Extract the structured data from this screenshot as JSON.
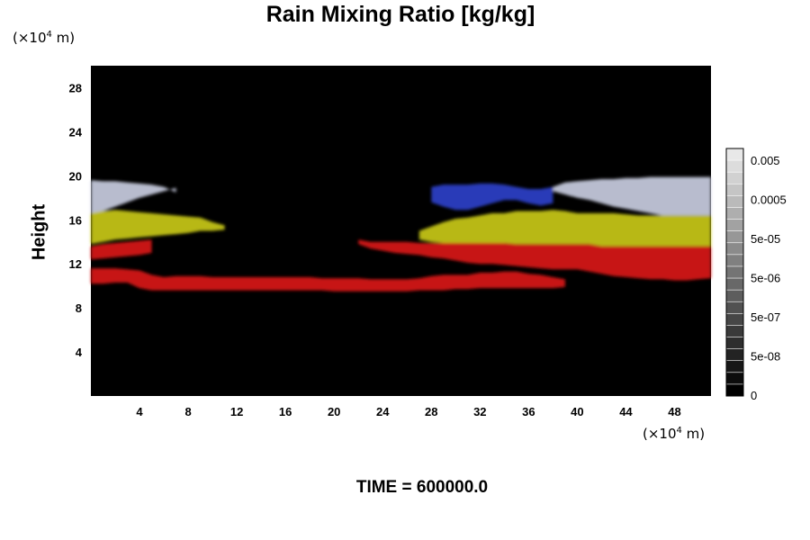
{
  "chart_data": {
    "type": "heatmap",
    "title": "Rain Mixing Ratio [kg/kg]",
    "ylabel": "Height",
    "x_unit_prefix": "(×10",
    "x_unit_exp": "4",
    "x_unit_suffix": " m)",
    "y_unit_prefix": "(×10",
    "y_unit_exp": "4",
    "y_unit_suffix": " m)",
    "time_label": "TIME = 600000.0",
    "xlim": [
      0,
      51
    ],
    "ylim": [
      0,
      30
    ],
    "x_ticks": [
      "4",
      "8",
      "12",
      "16",
      "20",
      "24",
      "28",
      "32",
      "36",
      "40",
      "44",
      "48"
    ],
    "x_tick_values": [
      4,
      8,
      12,
      16,
      20,
      24,
      28,
      32,
      36,
      40,
      44,
      48
    ],
    "y_ticks": [
      "4",
      "8",
      "12",
      "16",
      "20",
      "24",
      "28"
    ],
    "y_tick_values": [
      4,
      8,
      12,
      16,
      20,
      24,
      28
    ],
    "background_color": "#000000",
    "colorbar": {
      "labels": [
        "0.005",
        "0.0005",
        "5e-05",
        "5e-06",
        "5e-07",
        "5e-08",
        "0"
      ],
      "levels": 21,
      "low_color": "#000000",
      "high_color": "#ffffff"
    },
    "layers": [
      {
        "name": "white-gray band",
        "color": "#c8cce0",
        "upper_y": [
          19.6,
          19.5,
          19.5,
          19.4,
          19.3,
          19.2,
          19.0,
          18.5,
          0,
          0,
          0,
          0,
          0,
          0,
          0,
          0,
          0,
          0,
          0,
          0,
          0,
          0,
          0,
          0,
          0,
          0,
          0,
          0,
          0,
          0,
          0,
          0,
          0,
          0,
          0,
          0,
          0,
          0,
          19.0,
          19.4,
          19.5,
          19.6,
          19.7,
          19.7,
          19.8,
          19.8,
          19.9,
          19.9,
          19.9,
          19.9,
          19.9,
          19.9
        ],
        "lower_y": [
          16.5,
          16.8,
          17.2,
          17.6,
          18.0,
          18.3,
          18.6,
          18.9,
          0,
          0,
          0,
          0,
          0,
          0,
          0,
          0,
          0,
          0,
          0,
          0,
          0,
          0,
          0,
          0,
          0,
          0,
          0,
          0,
          0,
          0,
          0,
          0,
          0,
          0,
          0,
          0,
          0,
          0,
          18.6,
          18.3,
          18.0,
          17.8,
          17.5,
          17.2,
          17.0,
          16.8,
          16.6,
          16.4,
          16.4,
          16.4,
          16.4,
          16.4
        ]
      },
      {
        "name": "blue band",
        "color": "#2a3fc8",
        "upper_y": [
          0,
          0,
          0,
          0,
          0,
          0,
          0,
          0,
          0,
          0,
          0,
          0,
          0,
          0,
          0,
          0,
          0,
          0,
          0,
          0,
          0,
          0,
          0,
          0,
          0,
          0,
          0,
          0,
          19.0,
          19.2,
          19.2,
          19.2,
          19.3,
          19.3,
          19.2,
          19.0,
          18.8,
          18.8,
          19.0,
          0,
          0,
          0,
          0,
          0,
          0,
          0,
          0,
          0,
          0,
          0,
          0,
          0
        ],
        "lower_y": [
          0,
          0,
          0,
          0,
          0,
          0,
          0,
          0,
          0,
          0,
          0,
          0,
          0,
          0,
          0,
          0,
          0,
          0,
          0,
          0,
          0,
          0,
          0,
          0,
          0,
          0,
          0,
          0,
          17.6,
          17.2,
          16.9,
          16.9,
          17.2,
          17.5,
          17.8,
          17.8,
          17.5,
          17.3,
          17.5,
          0,
          0,
          0,
          0,
          0,
          0,
          0,
          0,
          0,
          0,
          0,
          0,
          0
        ]
      },
      {
        "name": "yellow band",
        "color": "#c8c814",
        "upper_y": [
          16.6,
          16.8,
          16.9,
          16.8,
          16.7,
          16.6,
          16.5,
          16.4,
          16.3,
          16.2,
          15.8,
          15.5,
          0,
          0,
          0,
          0,
          0,
          0,
          0,
          0,
          0,
          0,
          0,
          0,
          0,
          0,
          0,
          15.0,
          15.4,
          15.8,
          16.1,
          16.2,
          16.4,
          16.6,
          16.6,
          16.8,
          16.8,
          16.8,
          16.9,
          16.8,
          16.6,
          16.6,
          16.6,
          16.6,
          16.5,
          16.4,
          16.4,
          16.4,
          16.4,
          16.4,
          16.4,
          16.4
        ],
        "lower_y": [
          13.8,
          14.0,
          14.2,
          14.3,
          14.4,
          14.5,
          14.6,
          14.7,
          14.8,
          15.0,
          15.0,
          15.1,
          0,
          0,
          0,
          0,
          0,
          0,
          0,
          0,
          0,
          0,
          0,
          0,
          0,
          0,
          0,
          14.2,
          14.0,
          13.9,
          13.9,
          13.9,
          13.9,
          13.9,
          13.9,
          13.8,
          13.8,
          13.8,
          13.8,
          13.8,
          13.8,
          13.8,
          13.6,
          13.6,
          13.6,
          13.6,
          13.6,
          13.6,
          13.6,
          13.6,
          13.6,
          13.6
        ]
      },
      {
        "name": "red upper band",
        "color": "#d81414",
        "upper_y": [
          13.6,
          13.8,
          13.9,
          14.0,
          14.1,
          14.2,
          0,
          0,
          0,
          0,
          0,
          0,
          0,
          0,
          0,
          0,
          0,
          0,
          0,
          0,
          0,
          0,
          14.2,
          14.0,
          14.0,
          14.0,
          14.0,
          13.9,
          13.9,
          13.9,
          13.9,
          13.9,
          13.9,
          13.9,
          13.9,
          13.8,
          13.8,
          13.8,
          13.8,
          13.8,
          13.8,
          13.8,
          13.6,
          13.6,
          13.6,
          13.6,
          13.6,
          13.6,
          13.6,
          13.6,
          13.6,
          13.6
        ],
        "lower_y": [
          12.4,
          12.5,
          12.6,
          12.7,
          12.8,
          13.0,
          0,
          0,
          0,
          0,
          0,
          0,
          0,
          0,
          0,
          0,
          0,
          0,
          0,
          0,
          0,
          0,
          13.8,
          13.4,
          13.2,
          13.0,
          12.9,
          12.8,
          12.6,
          12.5,
          12.3,
          12.1,
          12.0,
          12.0,
          11.9,
          11.8,
          11.7,
          11.6,
          11.5,
          11.5,
          11.5,
          11.3,
          11.1,
          10.9,
          10.8,
          10.7,
          10.6,
          10.6,
          10.5,
          10.5,
          10.6,
          10.7
        ]
      },
      {
        "name": "red lower band",
        "color": "#d81414",
        "upper_y": [
          11.6,
          11.6,
          11.6,
          11.5,
          11.4,
          11.0,
          10.8,
          10.9,
          10.9,
          10.9,
          10.8,
          10.8,
          10.8,
          10.8,
          10.8,
          10.8,
          10.8,
          10.8,
          10.8,
          10.7,
          10.7,
          10.7,
          10.7,
          10.6,
          10.6,
          10.6,
          10.6,
          10.7,
          10.9,
          11.0,
          11.0,
          11.0,
          11.2,
          11.2,
          11.3,
          11.3,
          11.1,
          11.0,
          10.8,
          10.6,
          0,
          0,
          0,
          0,
          0,
          0,
          0,
          0,
          0,
          0,
          0,
          0
        ],
        "lower_y": [
          10.2,
          10.2,
          10.3,
          10.3,
          9.8,
          9.6,
          9.6,
          9.6,
          9.6,
          9.6,
          9.6,
          9.6,
          9.6,
          9.6,
          9.6,
          9.6,
          9.6,
          9.6,
          9.6,
          9.6,
          9.5,
          9.5,
          9.5,
          9.5,
          9.5,
          9.5,
          9.5,
          9.6,
          9.6,
          9.6,
          9.7,
          9.7,
          9.8,
          9.8,
          9.8,
          9.8,
          9.8,
          9.8,
          9.8,
          9.9,
          0,
          0,
          0,
          0,
          0,
          0,
          0,
          0,
          0,
          0,
          0,
          0
        ]
      }
    ]
  }
}
